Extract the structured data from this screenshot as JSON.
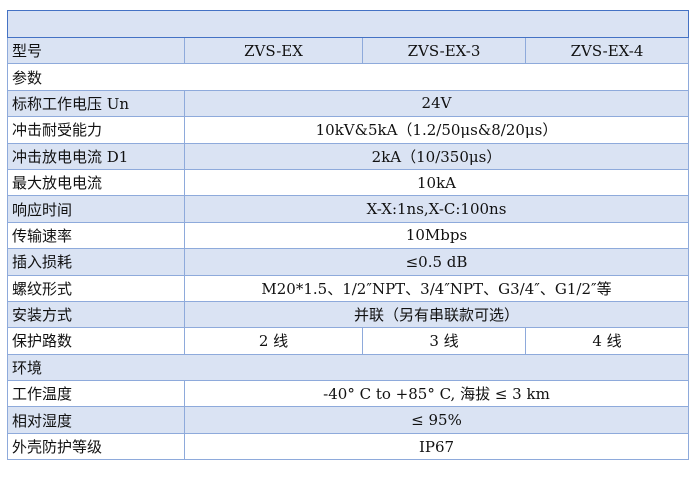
{
  "colors": {
    "header": "#4472c4",
    "band": "#dae3f3",
    "border": "#8eaadb"
  },
  "models": {
    "label": "型号",
    "cols": [
      "ZVS-EX",
      "ZVS-EX-3",
      "ZVS-EX-4"
    ]
  },
  "sections": {
    "params": "参数",
    "env": "环境"
  },
  "rows": [
    {
      "label": "标称工作电压 Un",
      "value": "24V"
    },
    {
      "label": "冲击耐受能力",
      "value": "10kV&5kA（1.2/50μs&8/20μs）"
    },
    {
      "label": "冲击放电电流 D1",
      "value": "2kA（10/350μs）"
    },
    {
      "label": "最大放电电流",
      "value": "10kA"
    },
    {
      "label": "响应时间",
      "value": "X-X:1ns,X-C:100ns"
    },
    {
      "label": "传输速率",
      "value": "10Mbps"
    },
    {
      "label": "插入损耗",
      "value": "≤0.5 dB"
    },
    {
      "label": "螺纹形式",
      "value": "M20*1.5、1/2″NPT、3/4″NPT、G3/4″、G1/2″等"
    },
    {
      "label": "安装方式",
      "value": "并联（另有串联款可选）"
    }
  ],
  "lines": {
    "label": "保护路数",
    "cols": [
      "2 线",
      "3 线",
      "4 线"
    ]
  },
  "env_rows": [
    {
      "label": "工作温度",
      "value": "-40° C to +85° C, 海拔 ≤ 3 km"
    },
    {
      "label": "相对湿度",
      "value": "≤ 95%"
    },
    {
      "label": "外壳防护等级",
      "value": "IP67"
    }
  ]
}
